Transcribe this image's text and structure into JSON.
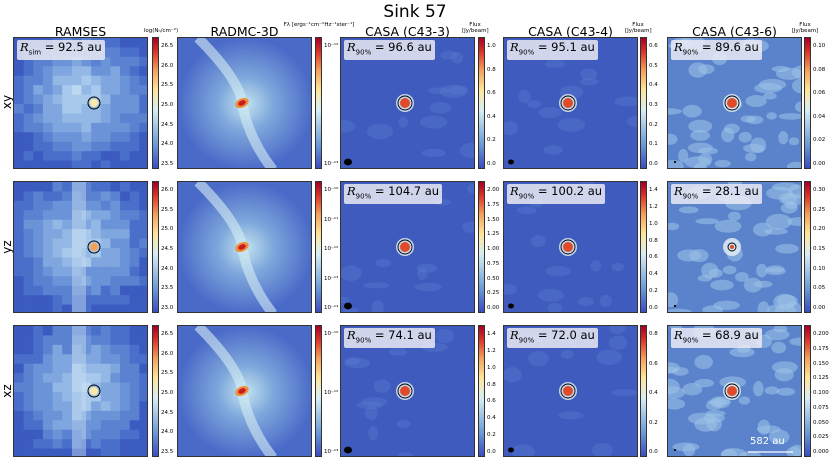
{
  "title": "Sink 57",
  "columns": [
    "RAMSES",
    "RADMC-3D",
    "CASA (C43-3)",
    "CASA (C43-4)",
    "CASA (C43-6)"
  ],
  "rows": [
    "xy",
    "yz",
    "xz"
  ],
  "colorbar_titles": {
    "ramses": "log(Nₕ/cm⁻²)",
    "radmc": "Fλ [ergs⁻¹cm⁻²Hz⁻¹ster⁻¹]",
    "casa": "Flux [Jy/beam]"
  },
  "panel_labels": {
    "sim": "R_sim = 92.5 au",
    "xy": [
      "R_90% = 96.6 au",
      "R_90% = 95.1 au",
      "R_90% = 89.6 au"
    ],
    "yz": [
      "R_90% = 104.7 au",
      "R_90% = 100.2 au",
      "R_90% = 28.1 au"
    ],
    "xz": [
      "R_90% = 74.1 au",
      "R_90% = 72.0 au",
      "R_90% = 68.9 au"
    ]
  },
  "scale_bar": "582 au",
  "colorbar_ticks": {
    "xy": {
      "ramses": [
        "26.5",
        "26.0",
        "25.5",
        "25.0",
        "24.5",
        "24.0",
        "23.5"
      ],
      "radmc": [
        "10⁻¹²",
        "10⁻¹³"
      ],
      "c433": [
        "1.0",
        "0.8",
        "0.6",
        "0.4",
        "0.2",
        "0.0"
      ],
      "c434": [
        "0.6",
        "0.5",
        "0.4",
        "0.3",
        "0.2",
        "0.1",
        "0.0"
      ],
      "c436": [
        "0.10",
        "0.08",
        "0.06",
        "0.04",
        "0.02",
        "0.00"
      ]
    },
    "yz": {
      "ramses": [
        "26.0",
        "25.5",
        "25.0",
        "24.5",
        "24.0",
        "23.5",
        "23.0"
      ],
      "radmc": [
        "10⁻¹⁰",
        "10⁻¹¹",
        "10⁻¹²",
        "10⁻¹³",
        "10⁻¹⁴"
      ],
      "c433": [
        "2.00",
        "1.75",
        "1.50",
        "1.25",
        "1.00",
        "0.75",
        "0.50",
        "0.25",
        "0.00"
      ],
      "c434": [
        "1.4",
        "1.2",
        "1.0",
        "0.8",
        "0.6",
        "0.4",
        "0.2",
        "0.0"
      ],
      "c436": [
        "0.30",
        "0.25",
        "0.20",
        "0.15",
        "0.10",
        "0.05",
        "0.00"
      ]
    },
    "xz": {
      "ramses": [
        "26.5",
        "26.0",
        "25.5",
        "25.0",
        "24.5",
        "24.0",
        "23.5"
      ],
      "radmc": [
        "10⁻¹⁰",
        "10⁻¹²",
        "10⁻¹³"
      ],
      "c433": [
        "1.4",
        "1.2",
        "1.0",
        "0.8",
        "0.6",
        "0.4",
        "0.2",
        "0.0"
      ],
      "c434": [
        "0.8",
        "0.6",
        "0.4",
        "0.2",
        "0.0"
      ],
      "c436": [
        "0.200",
        "0.175",
        "0.150",
        "0.125",
        "0.100",
        "0.075",
        "0.050",
        "0.025",
        "0.000"
      ]
    }
  }
}
